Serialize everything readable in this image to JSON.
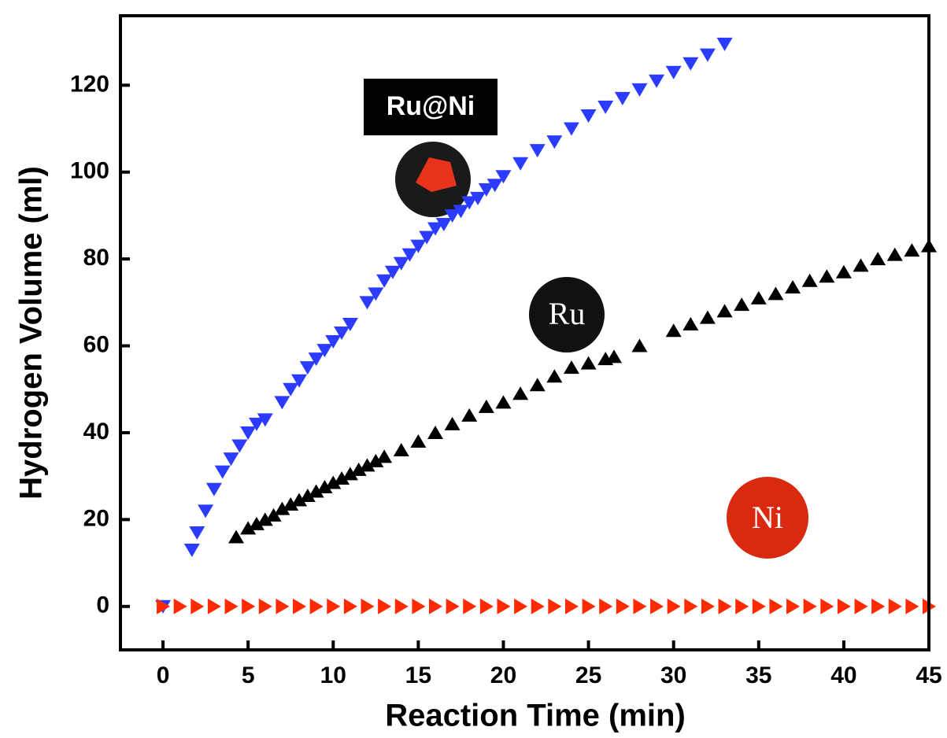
{
  "chart_data": {
    "type": "scatter",
    "x_label": "Reaction Time (min)",
    "y_label": "Hydrogen Volume (ml)",
    "xlim": [
      -2.5,
      45
    ],
    "ylim": [
      -10,
      136
    ],
    "xticks": [
      0,
      5,
      10,
      15,
      20,
      25,
      30,
      35,
      40,
      45
    ],
    "yticks": [
      0,
      20,
      40,
      60,
      80,
      100,
      120
    ],
    "series": [
      {
        "name": "Ru@Ni",
        "color": "#2b3bff",
        "marker": "triangle-down",
        "x": [
          0,
          1.7,
          2,
          2.5,
          3,
          3.5,
          4,
          4.5,
          5,
          5.5,
          6,
          7,
          7.5,
          8,
          8.5,
          9,
          9.5,
          10,
          10.5,
          11,
          12,
          12.5,
          13,
          13.5,
          14,
          14.5,
          15,
          15.5,
          16,
          16.5,
          17,
          17.5,
          18,
          18.5,
          19,
          19.5,
          20,
          21,
          22,
          23,
          24,
          25,
          26,
          27,
          28,
          29,
          30,
          31,
          32,
          33
        ],
        "values": [
          0,
          13,
          17,
          22,
          27,
          31,
          34,
          37,
          40,
          42,
          43,
          47,
          50,
          52,
          55,
          57,
          59,
          61,
          63,
          65,
          70,
          72,
          75,
          77,
          79,
          81,
          83,
          85,
          87,
          88,
          90,
          91,
          93,
          94,
          96,
          97,
          99,
          102,
          105,
          107,
          110,
          113,
          115,
          117,
          119,
          121,
          123,
          125,
          127,
          129.5
        ]
      },
      {
        "name": "Ru",
        "color": "#000000",
        "marker": "triangle-up",
        "x": [
          4.3,
          5,
          5.5,
          6,
          6.5,
          7,
          7.5,
          8,
          8.5,
          9,
          9.5,
          10,
          10.5,
          11,
          11.5,
          12,
          12.5,
          13,
          14,
          15,
          16,
          17,
          18,
          19,
          20,
          21,
          22,
          23,
          24,
          25,
          26,
          26.5,
          28,
          30,
          31,
          32,
          33,
          34,
          35,
          36,
          37,
          38,
          39,
          40,
          41,
          42,
          43,
          44,
          45
        ],
        "values": [
          16,
          18,
          19,
          20,
          21,
          22.5,
          23.5,
          24.5,
          25.5,
          26.5,
          27.5,
          28.5,
          29.5,
          30.5,
          31.5,
          32.5,
          33.5,
          34.5,
          36,
          38,
          40,
          42,
          44,
          46,
          47,
          49,
          51,
          53,
          55,
          56,
          57,
          57.5,
          60,
          63.5,
          65,
          66.5,
          68,
          69.5,
          71,
          72,
          73.5,
          75,
          76,
          77,
          78.5,
          80,
          81,
          82,
          83
        ]
      },
      {
        "name": "Ni",
        "color": "#ff2a00",
        "marker": "triangle-right",
        "x": [
          0,
          1,
          2,
          3,
          4,
          5,
          6,
          7,
          8,
          9,
          10,
          11,
          12,
          13,
          14,
          15,
          16,
          17,
          18,
          19,
          20,
          21,
          22,
          23,
          24,
          25,
          26,
          27,
          28,
          29,
          30,
          31,
          32,
          33,
          34,
          35,
          36,
          37,
          38,
          39,
          40,
          41,
          42,
          43,
          44,
          45
        ],
        "values": [
          0,
          0,
          0,
          0,
          0,
          0,
          0,
          0,
          0,
          0,
          0,
          0,
          0,
          0,
          0,
          0,
          0,
          0,
          0,
          0,
          0,
          0,
          0,
          0,
          0,
          0,
          0,
          0,
          0,
          0,
          0,
          0,
          0,
          0,
          0,
          0,
          0,
          0,
          0,
          0,
          0,
          0,
          0,
          0,
          0,
          0
        ]
      }
    ]
  }
}
